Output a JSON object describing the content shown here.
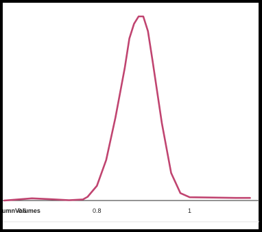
{
  "chart_data": {
    "type": "line",
    "title": "",
    "xlabel": "umnVolumes",
    "ylabel": "",
    "overlap_text": "0.6",
    "xlim": [
      0.6,
      1.15
    ],
    "ylim": [
      0,
      100
    ],
    "x_ticks": [
      0.8,
      1
    ],
    "x_tick_labels": [
      "0.8",
      "1"
    ],
    "grid": false,
    "series": [
      {
        "color": "#c04470",
        "x": [
          0.6,
          0.63,
          0.66,
          0.7,
          0.74,
          0.77,
          0.78,
          0.8,
          0.82,
          0.84,
          0.86,
          0.87,
          0.88,
          0.89,
          0.9,
          0.91,
          0.92,
          0.94,
          0.96,
          0.98,
          1.0,
          1.05,
          1.1,
          1.13
        ],
        "y": [
          0.0,
          0.6,
          1.2,
          0.7,
          0.2,
          0.6,
          2.0,
          8.0,
          22.0,
          45.0,
          72.0,
          88.0,
          96.0,
          100.0,
          100.0,
          92.0,
          76.0,
          42.0,
          15.0,
          4.0,
          1.8,
          1.6,
          1.4,
          1.4
        ]
      }
    ],
    "colors": {
      "line": "#c04470",
      "axis": "#555555",
      "frame": "#000000"
    }
  }
}
